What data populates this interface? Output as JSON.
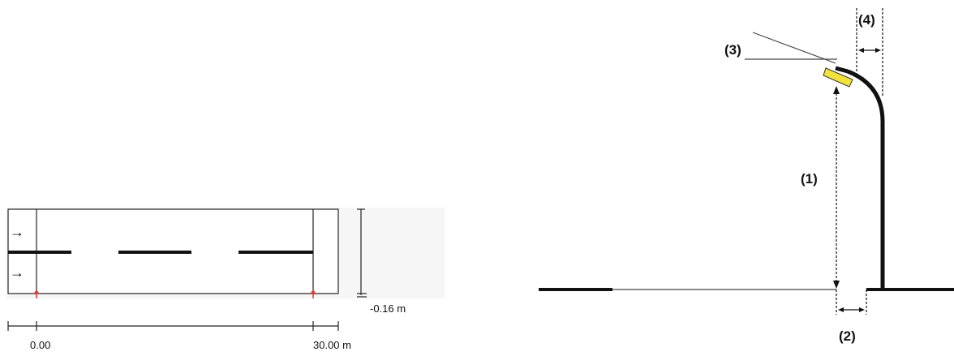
{
  "plan": {
    "width_label": "-0.16 m",
    "start_label": "0.00",
    "end_label": "30.00 m",
    "direction_marks": [
      "→",
      "→"
    ]
  },
  "elevation": {
    "callouts": [
      "(1)",
      "(2)",
      "(3)",
      "(4)"
    ]
  },
  "colors": {
    "luminaire": "#f2e33b",
    "pole_marker": "#e53935",
    "line": "#111111"
  }
}
